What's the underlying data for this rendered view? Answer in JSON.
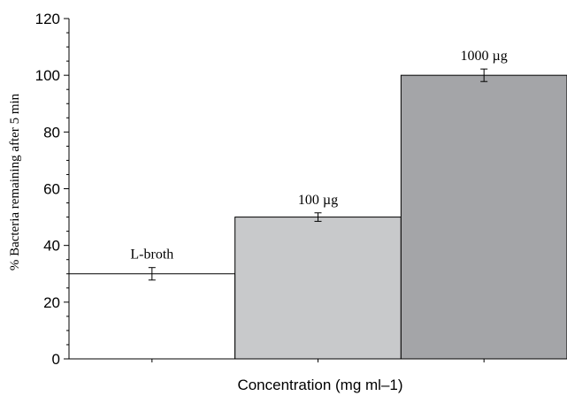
{
  "chart_data": {
    "type": "bar",
    "categories": [
      "L-broth",
      "100 µg",
      "1000 µg"
    ],
    "values": [
      30,
      50,
      100
    ],
    "errors": [
      2.2,
      1.5,
      2.2
    ],
    "bar_colors": [
      "#ffffff",
      "#c8c9cb",
      "#a4a5a8"
    ],
    "edge_color": "#000000",
    "xlabel": "Concentration (mg ml–1)",
    "ylabel": "% Bacteria remaining after 5 min",
    "ylim": [
      0,
      120
    ],
    "yticks": [
      "0",
      "20",
      "40",
      "60",
      "80",
      "100",
      "120"
    ],
    "grid": false
  }
}
